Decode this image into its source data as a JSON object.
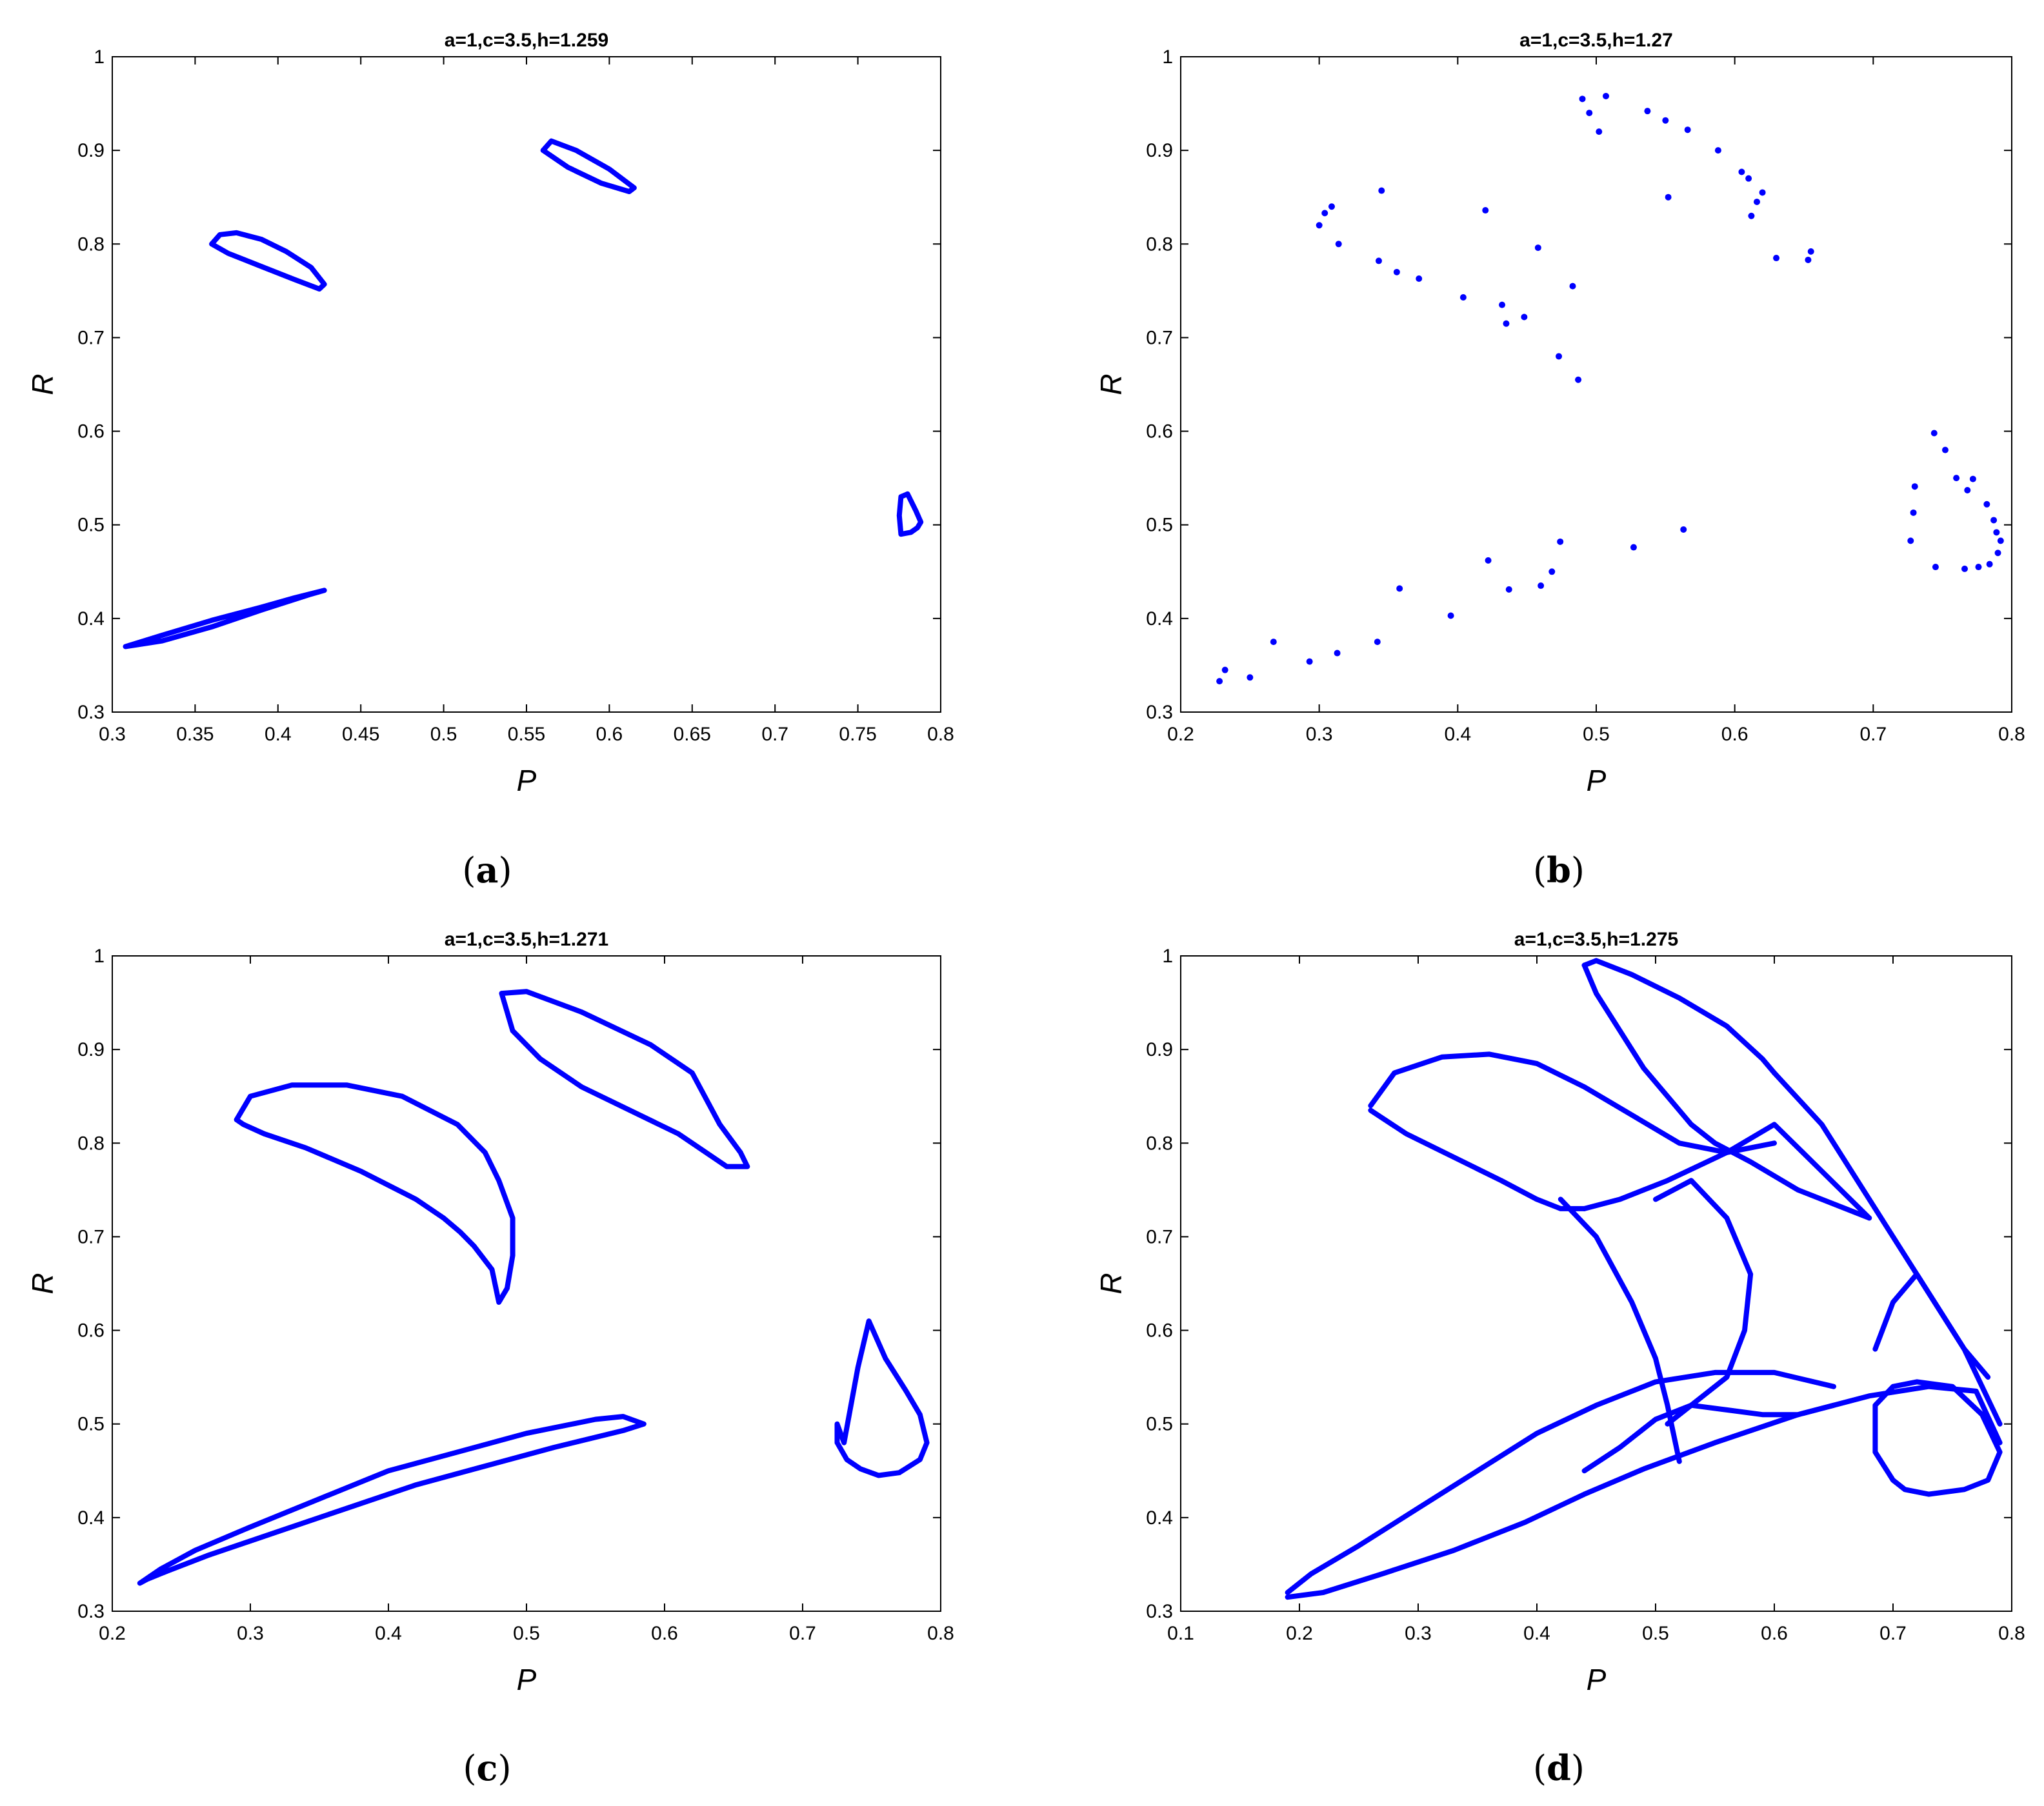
{
  "chart_data": [
    {
      "type": "scatter",
      "title": "a=1,c=3.5,h=1.259",
      "xlabel": "P",
      "ylabel": "R",
      "panel_letter": "a",
      "xlim": [
        0.3,
        0.8
      ],
      "ylim": [
        0.3,
        1.0
      ],
      "xticks": [
        "0.3",
        "0.35",
        "0.4",
        "0.45",
        "0.5",
        "0.55",
        "0.6",
        "0.65",
        "0.7",
        "0.75",
        "0.8"
      ],
      "yticks": [
        "0.3",
        "0.4",
        "0.5",
        "0.6",
        "0.7",
        "0.8",
        "0.9",
        "1"
      ],
      "grid": false,
      "marker_color": "#0000ff",
      "curves": [
        {
          "x": [
            0.308,
            0.33,
            0.36,
            0.39,
            0.41,
            0.428,
            0.42,
            0.39,
            0.36,
            0.33,
            0.308
          ],
          "y": [
            0.37,
            0.382,
            0.398,
            0.412,
            0.422,
            0.43,
            0.426,
            0.409,
            0.391,
            0.376,
            0.37
          ]
        },
        {
          "x": [
            0.36,
            0.365,
            0.375,
            0.39,
            0.405,
            0.42,
            0.428,
            0.425,
            0.41,
            0.39,
            0.37,
            0.36
          ],
          "y": [
            0.8,
            0.81,
            0.812,
            0.805,
            0.792,
            0.775,
            0.757,
            0.752,
            0.762,
            0.776,
            0.79,
            0.8
          ]
        },
        {
          "x": [
            0.56,
            0.565,
            0.58,
            0.6,
            0.615,
            0.612,
            0.595,
            0.575,
            0.56
          ],
          "y": [
            0.9,
            0.91,
            0.9,
            0.88,
            0.86,
            0.856,
            0.865,
            0.882,
            0.9
          ]
        },
        {
          "x": [
            0.776,
            0.782,
            0.786,
            0.788,
            0.785,
            0.78,
            0.776,
            0.775,
            0.776
          ],
          "y": [
            0.49,
            0.492,
            0.497,
            0.503,
            0.515,
            0.533,
            0.53,
            0.51,
            0.49
          ]
        }
      ]
    },
    {
      "type": "scatter",
      "title": "a=1,c=3.5,h=1.27",
      "xlabel": "P",
      "ylabel": "R",
      "panel_letter": "b",
      "xlim": [
        0.2,
        0.8
      ],
      "ylim": [
        0.3,
        1.0
      ],
      "xticks": [
        "0.2",
        "0.3",
        "0.4",
        "0.5",
        "0.6",
        "0.7",
        "0.8"
      ],
      "yticks": [
        "0.3",
        "0.4",
        "0.5",
        "0.6",
        "0.7",
        "0.8",
        "0.9",
        "1"
      ],
      "grid": false,
      "marker_color": "#0000ff",
      "points": [
        {
          "x": 0.228,
          "y": 0.333
        },
        {
          "x": 0.232,
          "y": 0.345
        },
        {
          "x": 0.25,
          "y": 0.337
        },
        {
          "x": 0.267,
          "y": 0.375
        },
        {
          "x": 0.293,
          "y": 0.354
        },
        {
          "x": 0.313,
          "y": 0.363
        },
        {
          "x": 0.342,
          "y": 0.375
        },
        {
          "x": 0.358,
          "y": 0.432
        },
        {
          "x": 0.395,
          "y": 0.403
        },
        {
          "x": 0.422,
          "y": 0.462
        },
        {
          "x": 0.437,
          "y": 0.431
        },
        {
          "x": 0.46,
          "y": 0.435
        },
        {
          "x": 0.468,
          "y": 0.45
        },
        {
          "x": 0.474,
          "y": 0.482
        },
        {
          "x": 0.527,
          "y": 0.476
        },
        {
          "x": 0.563,
          "y": 0.495
        },
        {
          "x": 0.3,
          "y": 0.82
        },
        {
          "x": 0.304,
          "y": 0.833
        },
        {
          "x": 0.309,
          "y": 0.84
        },
        {
          "x": 0.314,
          "y": 0.8
        },
        {
          "x": 0.343,
          "y": 0.782
        },
        {
          "x": 0.345,
          "y": 0.857
        },
        {
          "x": 0.356,
          "y": 0.77
        },
        {
          "x": 0.372,
          "y": 0.763
        },
        {
          "x": 0.404,
          "y": 0.743
        },
        {
          "x": 0.42,
          "y": 0.836
        },
        {
          "x": 0.432,
          "y": 0.735
        },
        {
          "x": 0.435,
          "y": 0.715
        },
        {
          "x": 0.448,
          "y": 0.722
        },
        {
          "x": 0.458,
          "y": 0.796
        },
        {
          "x": 0.473,
          "y": 0.68
        },
        {
          "x": 0.483,
          "y": 0.755
        },
        {
          "x": 0.487,
          "y": 0.655
        },
        {
          "x": 0.49,
          "y": 0.955
        },
        {
          "x": 0.495,
          "y": 0.94
        },
        {
          "x": 0.502,
          "y": 0.92
        },
        {
          "x": 0.507,
          "y": 0.958
        },
        {
          "x": 0.537,
          "y": 0.942
        },
        {
          "x": 0.55,
          "y": 0.932
        },
        {
          "x": 0.552,
          "y": 0.85
        },
        {
          "x": 0.566,
          "y": 0.922
        },
        {
          "x": 0.588,
          "y": 0.9
        },
        {
          "x": 0.605,
          "y": 0.877
        },
        {
          "x": 0.61,
          "y": 0.87
        },
        {
          "x": 0.612,
          "y": 0.83
        },
        {
          "x": 0.616,
          "y": 0.845
        },
        {
          "x": 0.62,
          "y": 0.855
        },
        {
          "x": 0.63,
          "y": 0.785
        },
        {
          "x": 0.653,
          "y": 0.783
        },
        {
          "x": 0.655,
          "y": 0.792
        },
        {
          "x": 0.727,
          "y": 0.483
        },
        {
          "x": 0.729,
          "y": 0.513
        },
        {
          "x": 0.73,
          "y": 0.541
        },
        {
          "x": 0.744,
          "y": 0.598
        },
        {
          "x": 0.745,
          "y": 0.455
        },
        {
          "x": 0.752,
          "y": 0.58
        },
        {
          "x": 0.76,
          "y": 0.55
        },
        {
          "x": 0.766,
          "y": 0.453
        },
        {
          "x": 0.768,
          "y": 0.537
        },
        {
          "x": 0.772,
          "y": 0.549
        },
        {
          "x": 0.776,
          "y": 0.455
        },
        {
          "x": 0.782,
          "y": 0.522
        },
        {
          "x": 0.784,
          "y": 0.458
        },
        {
          "x": 0.787,
          "y": 0.505
        },
        {
          "x": 0.789,
          "y": 0.492
        },
        {
          "x": 0.79,
          "y": 0.47
        },
        {
          "x": 0.792,
          "y": 0.483
        }
      ]
    },
    {
      "type": "scatter",
      "title": "a=1,c=3.5,h=1.271",
      "xlabel": "P",
      "ylabel": "R",
      "panel_letter": "c",
      "xlim": [
        0.2,
        0.8
      ],
      "ylim": [
        0.3,
        1.0
      ],
      "xticks": [
        "0.2",
        "0.3",
        "0.4",
        "0.5",
        "0.6",
        "0.7",
        "0.8"
      ],
      "yticks": [
        "0.3",
        "0.4",
        "0.5",
        "0.6",
        "0.7",
        "0.8",
        "0.9",
        "1"
      ],
      "grid": false,
      "marker_color": "#0000ff",
      "curves": [
        {
          "x": [
            0.22,
            0.235,
            0.26,
            0.3,
            0.35,
            0.4,
            0.45,
            0.5,
            0.55,
            0.57,
            0.585,
            0.57,
            0.52,
            0.47,
            0.42,
            0.37,
            0.32,
            0.27,
            0.24,
            0.225,
            0.22
          ],
          "y": [
            0.33,
            0.345,
            0.365,
            0.39,
            0.42,
            0.45,
            0.47,
            0.49,
            0.505,
            0.508,
            0.5,
            0.493,
            0.475,
            0.455,
            0.435,
            0.41,
            0.385,
            0.36,
            0.343,
            0.334,
            0.33
          ]
        },
        {
          "x": [
            0.29,
            0.3,
            0.33,
            0.37,
            0.41,
            0.45,
            0.47,
            0.48,
            0.49,
            0.49,
            0.486,
            0.48,
            0.475,
            0.462,
            0.452,
            0.44,
            0.42,
            0.38,
            0.34,
            0.31,
            0.295,
            0.29
          ],
          "y": [
            0.825,
            0.85,
            0.862,
            0.862,
            0.85,
            0.82,
            0.79,
            0.76,
            0.72,
            0.68,
            0.645,
            0.63,
            0.665,
            0.69,
            0.705,
            0.72,
            0.74,
            0.77,
            0.795,
            0.81,
            0.82,
            0.825
          ]
        },
        {
          "x": [
            0.482,
            0.5,
            0.54,
            0.59,
            0.62,
            0.64,
            0.655,
            0.66,
            0.645,
            0.63,
            0.61,
            0.575,
            0.54,
            0.51,
            0.49,
            0.482
          ],
          "y": [
            0.96,
            0.962,
            0.94,
            0.905,
            0.875,
            0.82,
            0.79,
            0.775,
            0.775,
            0.79,
            0.81,
            0.835,
            0.86,
            0.89,
            0.92,
            0.96
          ]
        },
        {
          "x": [
            0.73,
            0.74,
            0.748,
            0.76,
            0.775,
            0.785,
            0.79,
            0.785,
            0.77,
            0.755,
            0.742,
            0.732,
            0.725,
            0.725,
            0.73
          ],
          "y": [
            0.48,
            0.56,
            0.61,
            0.57,
            0.535,
            0.51,
            0.48,
            0.462,
            0.448,
            0.445,
            0.452,
            0.462,
            0.48,
            0.5,
            0.48
          ]
        }
      ]
    },
    {
      "type": "scatter",
      "title": "a=1,c=3.5,h=1.275",
      "xlabel": "P",
      "ylabel": "R",
      "panel_letter": "d",
      "xlim": [
        0.1,
        0.8
      ],
      "ylim": [
        0.3,
        1.0
      ],
      "xticks": [
        "0.1",
        "0.2",
        "0.3",
        "0.4",
        "0.5",
        "0.6",
        "0.7",
        "0.8"
      ],
      "yticks": [
        "0.3",
        "0.4",
        "0.5",
        "0.6",
        "0.7",
        "0.8",
        "0.9",
        "1"
      ],
      "grid": false,
      "marker_color": "#0000ff",
      "curves": [
        {
          "x": [
            0.19,
            0.22,
            0.27,
            0.33,
            0.39,
            0.44,
            0.49,
            0.55,
            0.62,
            0.68,
            0.73,
            0.77,
            0.79
          ],
          "y": [
            0.315,
            0.32,
            0.34,
            0.365,
            0.395,
            0.425,
            0.452,
            0.48,
            0.51,
            0.53,
            0.54,
            0.535,
            0.48
          ]
        },
        {
          "x": [
            0.19,
            0.21,
            0.25,
            0.3,
            0.35,
            0.4,
            0.45,
            0.5,
            0.55,
            0.6,
            0.65
          ],
          "y": [
            0.32,
            0.34,
            0.37,
            0.41,
            0.45,
            0.49,
            0.52,
            0.545,
            0.555,
            0.555,
            0.54
          ]
        },
        {
          "x": [
            0.26,
            0.28,
            0.32,
            0.36,
            0.4,
            0.44,
            0.48,
            0.52,
            0.56,
            0.6
          ],
          "y": [
            0.84,
            0.875,
            0.892,
            0.895,
            0.885,
            0.86,
            0.83,
            0.8,
            0.79,
            0.8
          ]
        },
        {
          "x": [
            0.26,
            0.29,
            0.33,
            0.37,
            0.4,
            0.42,
            0.44
          ],
          "y": [
            0.835,
            0.81,
            0.785,
            0.76,
            0.74,
            0.73,
            0.73
          ]
        },
        {
          "x": [
            0.44,
            0.47,
            0.51,
            0.56,
            0.6,
            0.64,
            0.68
          ],
          "y": [
            0.73,
            0.74,
            0.76,
            0.79,
            0.82,
            0.77,
            0.72
          ]
        },
        {
          "x": [
            0.44,
            0.45,
            0.48,
            0.52,
            0.56,
            0.59,
            0.6
          ],
          "y": [
            0.99,
            0.995,
            0.98,
            0.955,
            0.925,
            0.89,
            0.875
          ]
        },
        {
          "x": [
            0.44,
            0.45,
            0.47,
            0.49,
            0.51,
            0.53,
            0.55,
            0.58,
            0.62,
            0.66,
            0.68
          ],
          "y": [
            0.99,
            0.96,
            0.92,
            0.88,
            0.85,
            0.82,
            0.8,
            0.78,
            0.75,
            0.73,
            0.72
          ]
        },
        {
          "x": [
            0.6,
            0.64,
            0.68,
            0.72,
            0.76,
            0.79
          ],
          "y": [
            0.875,
            0.82,
            0.74,
            0.66,
            0.58,
            0.5
          ]
        },
        {
          "x": [
            0.42,
            0.45,
            0.48,
            0.5,
            0.51,
            0.52
          ],
          "y": [
            0.74,
            0.7,
            0.63,
            0.57,
            0.52,
            0.46
          ]
        },
        {
          "x": [
            0.5,
            0.53,
            0.56,
            0.58,
            0.575,
            0.56,
            0.53,
            0.51
          ],
          "y": [
            0.74,
            0.76,
            0.72,
            0.66,
            0.6,
            0.55,
            0.52,
            0.5
          ]
        },
        {
          "x": [
            0.685,
            0.7,
            0.71,
            0.73,
            0.76,
            0.78,
            0.79,
            0.775,
            0.75,
            0.72,
            0.7,
            0.685,
            0.685
          ],
          "y": [
            0.47,
            0.44,
            0.43,
            0.425,
            0.43,
            0.44,
            0.47,
            0.51,
            0.54,
            0.545,
            0.54,
            0.52,
            0.47
          ]
        },
        {
          "x": [
            0.685,
            0.7,
            0.72,
            0.74,
            0.76,
            0.78
          ],
          "y": [
            0.58,
            0.63,
            0.66,
            0.62,
            0.58,
            0.55
          ]
        },
        {
          "x": [
            0.44,
            0.47,
            0.5,
            0.53,
            0.56,
            0.59,
            0.62,
            0.65
          ],
          "y": [
            0.45,
            0.475,
            0.505,
            0.52,
            0.515,
            0.51,
            0.51,
            0.52
          ]
        }
      ]
    }
  ]
}
